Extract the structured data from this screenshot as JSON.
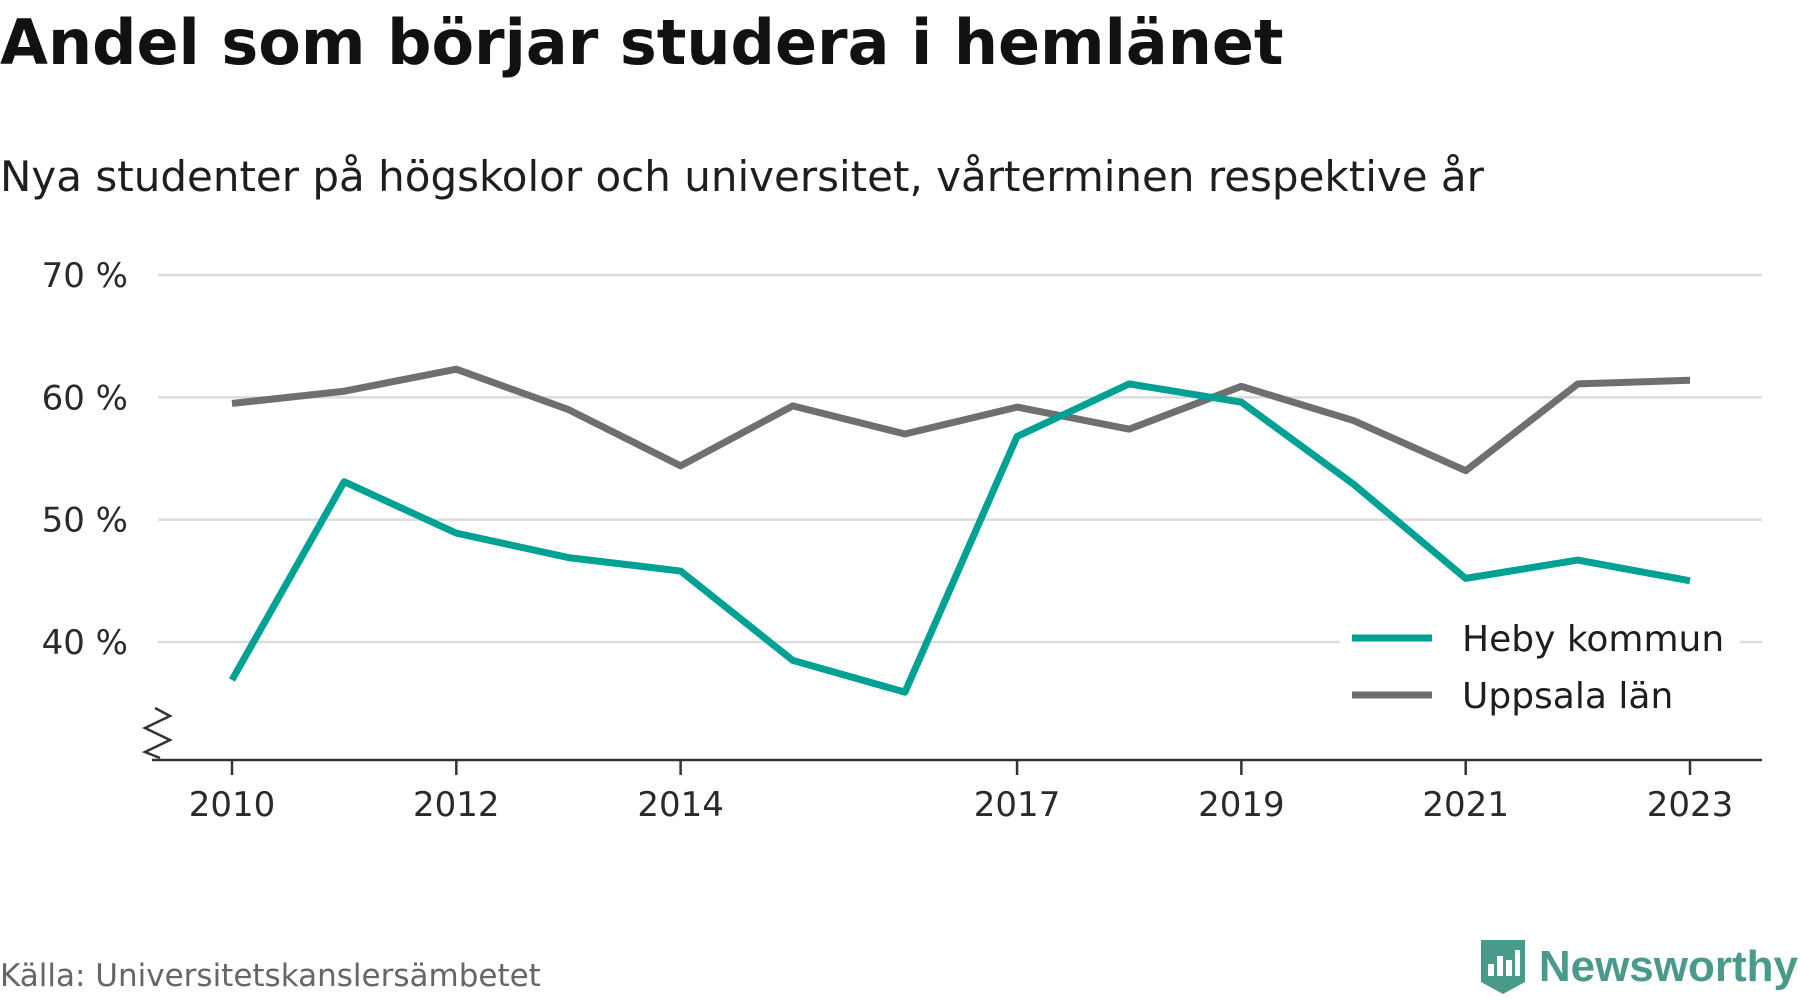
{
  "title": "Andel som börjar studera i hemlänet",
  "subtitle": "Nya studenter på högskolor och universitet, vårterminen respektive år",
  "source": "Källa: Universitetskanslersämbetet",
  "brand": {
    "name": "Newsworthy",
    "icon": "newsworthy-logo-icon",
    "color": "#4a9a8c"
  },
  "chart_data": {
    "type": "line",
    "x": [
      2010,
      2011,
      2012,
      2013,
      2014,
      2015,
      2016,
      2017,
      2018,
      2019,
      2020,
      2021,
      2022,
      2023
    ],
    "x_tick_labels": [
      "2010",
      "2012",
      "2014",
      "2017",
      "2019",
      "2021",
      "2023"
    ],
    "y_tick_labels": [
      "40 %",
      "50 %",
      "60 %",
      "70 %"
    ],
    "y_ticks": [
      40,
      50,
      60,
      70
    ],
    "ylim": [
      30,
      70
    ],
    "y_axis_break": true,
    "grid": true,
    "legend_position": "bottom-right",
    "series": [
      {
        "name": "Heby kommun",
        "color": "#00a195",
        "values": [
          36.9,
          53.1,
          48.9,
          46.9,
          45.8,
          38.5,
          35.9,
          56.8,
          61.1,
          59.6,
          52.9,
          45.2,
          46.7,
          45.0
        ]
      },
      {
        "name": "Uppsala län",
        "color": "#6e6e73",
        "values": [
          59.5,
          60.5,
          62.3,
          59.0,
          54.4,
          59.3,
          57.0,
          59.2,
          57.4,
          60.9,
          58.1,
          54.0,
          61.1,
          61.4
        ]
      }
    ]
  }
}
